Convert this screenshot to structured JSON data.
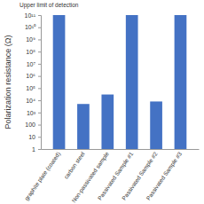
{
  "chart_data": {
    "type": "bar",
    "y_label": "Polarization resistance (Ω)",
    "annotation": "Upper limit of detection",
    "categories": [
      "graphite plate (coated)",
      "carbon steel",
      "Non-passivated sample",
      "Passivated Sample #1",
      "Passivated Sample #2",
      "Passivated Sample #3"
    ],
    "values": [
      100000000000,
      5000,
      30000,
      100000000000,
      8000,
      100000000000
    ],
    "color": "#4472c4",
    "log": "y",
    "ylim": [
      1,
      100000000000
    ],
    "yticks": [
      1,
      10,
      100,
      {
        "value": 1000,
        "label": "10³"
      },
      {
        "value": 10000,
        "label": "10⁴"
      },
      {
        "value": 100000,
        "label": "10⁵"
      },
      {
        "value": 1000000,
        "label": "10⁶"
      },
      {
        "value": 10000000,
        "label": "10⁷"
      },
      {
        "value": 100000000,
        "label": "10⁸"
      },
      {
        "value": 1000000000,
        "label": "10⁹"
      },
      {
        "value": 10000000000,
        "label": "10¹⁰"
      },
      {
        "value": 100000000000,
        "label": "10¹¹"
      }
    ]
  }
}
